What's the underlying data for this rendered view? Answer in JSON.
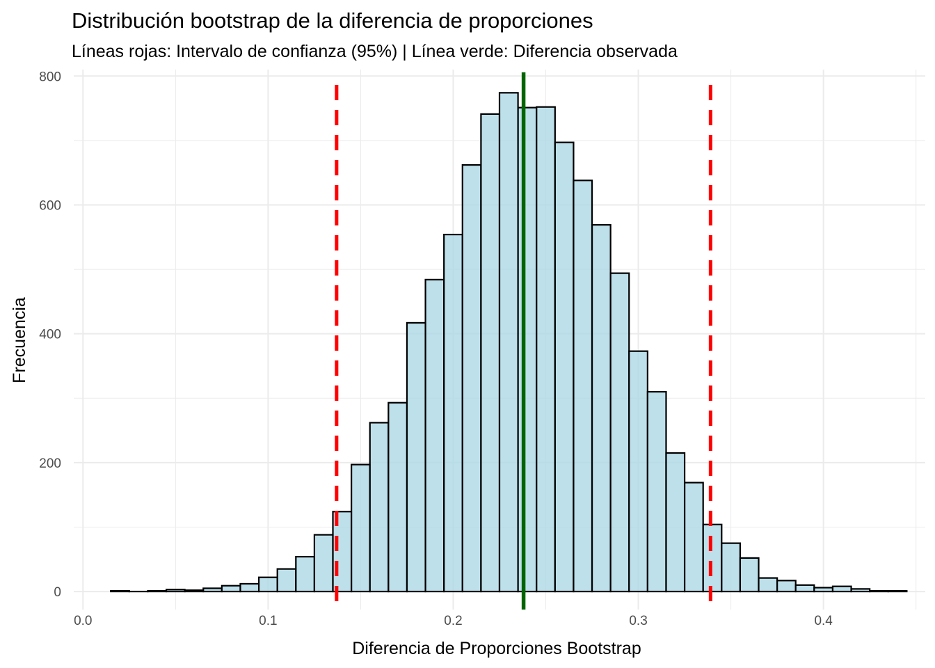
{
  "chart_data": {
    "type": "histogram",
    "title": "Distribución bootstrap de la diferencia de proporciones",
    "subtitle": "Líneas rojas: Intervalo de confianza (95%) | Línea verde: Diferencia observada",
    "xlabel": "Diferencia de Proporciones Bootstrap",
    "ylabel": "Frecuencia",
    "xlim": [
      -0.005,
      0.455
    ],
    "ylim": [
      -28,
      810
    ],
    "x_ticks": [
      0.0,
      0.1,
      0.2,
      0.3,
      0.4
    ],
    "x_tick_labels": [
      "0.0",
      "0.1",
      "0.2",
      "0.3",
      "0.4"
    ],
    "y_ticks": [
      0,
      200,
      400,
      600,
      800
    ],
    "y_tick_labels": [
      "0",
      "200",
      "400",
      "600",
      "800"
    ],
    "bin_start": 0.015,
    "bin_width": 0.01,
    "counts": [
      1,
      0,
      1,
      3,
      2,
      5,
      9,
      12,
      22,
      35,
      54,
      88,
      124,
      197,
      262,
      293,
      417,
      484,
      554,
      662,
      741,
      774,
      751,
      752,
      697,
      638,
      569,
      494,
      373,
      310,
      215,
      169,
      104,
      75,
      52,
      21,
      17,
      10,
      6,
      8,
      4,
      1,
      1
    ],
    "ci_lower": 0.137,
    "ci_upper": 0.339,
    "observed_difference": 0.238,
    "colors": {
      "bar_fill": "#add8e6",
      "bar_stroke": "#000000",
      "ci_line": "#ff0000",
      "observed_line": "#006400",
      "grid": "#ebebeb"
    }
  }
}
